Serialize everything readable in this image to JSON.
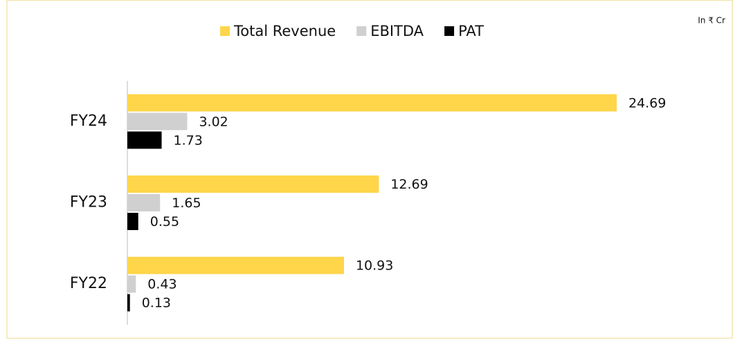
{
  "chart_data": {
    "type": "bar",
    "orientation": "horizontal",
    "annotation": "In ₹ Cr",
    "categories": [
      "FY24",
      "FY23",
      "FY22"
    ],
    "series": [
      {
        "name": "Total Revenue",
        "color": "#ffd54a",
        "values": [
          24.69,
          12.69,
          10.93
        ]
      },
      {
        "name": "EBITDA",
        "color": "#d0d0d0",
        "values": [
          3.02,
          1.65,
          0.43
        ]
      },
      {
        "name": "PAT",
        "color": "#000000",
        "values": [
          1.73,
          0.55,
          0.13
        ]
      }
    ],
    "xlim": [
      0,
      30
    ]
  }
}
